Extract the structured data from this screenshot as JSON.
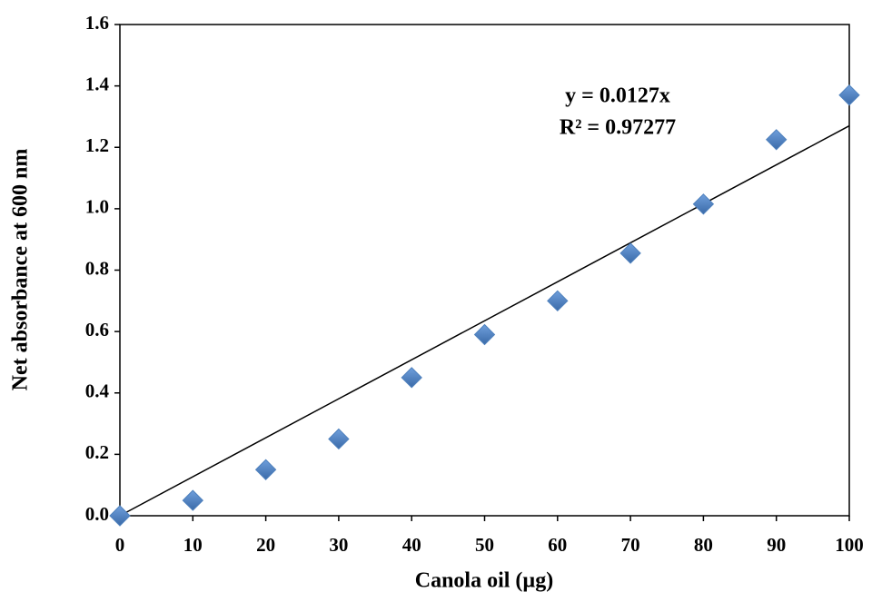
{
  "chart_data": {
    "type": "scatter",
    "x_label": "Canola oil (µg)",
    "y_label": "Net absorbance at 600 nm",
    "annotations": [
      "y = 0.0127x",
      "R² = 0.97277"
    ],
    "x": [
      0,
      10,
      20,
      30,
      40,
      50,
      60,
      70,
      80,
      90,
      100
    ],
    "series": [
      {
        "color": "#4f81bd",
        "values": [
          0,
          0.05,
          0.15,
          0.25,
          0.45,
          0.59,
          0.7,
          0.855,
          1.015,
          1.225,
          1.37
        ]
      }
    ],
    "trendline": {
      "color": "#000000",
      "x": [
        0,
        100
      ],
      "y": [
        0,
        1.27
      ]
    },
    "xlim": [
      0,
      100
    ],
    "xticks": [
      0,
      10,
      20,
      30,
      40,
      50,
      60,
      70,
      80,
      90,
      100
    ],
    "ylim": [
      0,
      1.6
    ],
    "yticks": [
      {
        "value": 0,
        "label": "0.0"
      },
      0.2,
      0.4,
      0.6,
      0.8,
      {
        "value": 1,
        "label": "1.0"
      },
      1.2,
      1.4,
      1.6
    ],
    "grid": false
  }
}
